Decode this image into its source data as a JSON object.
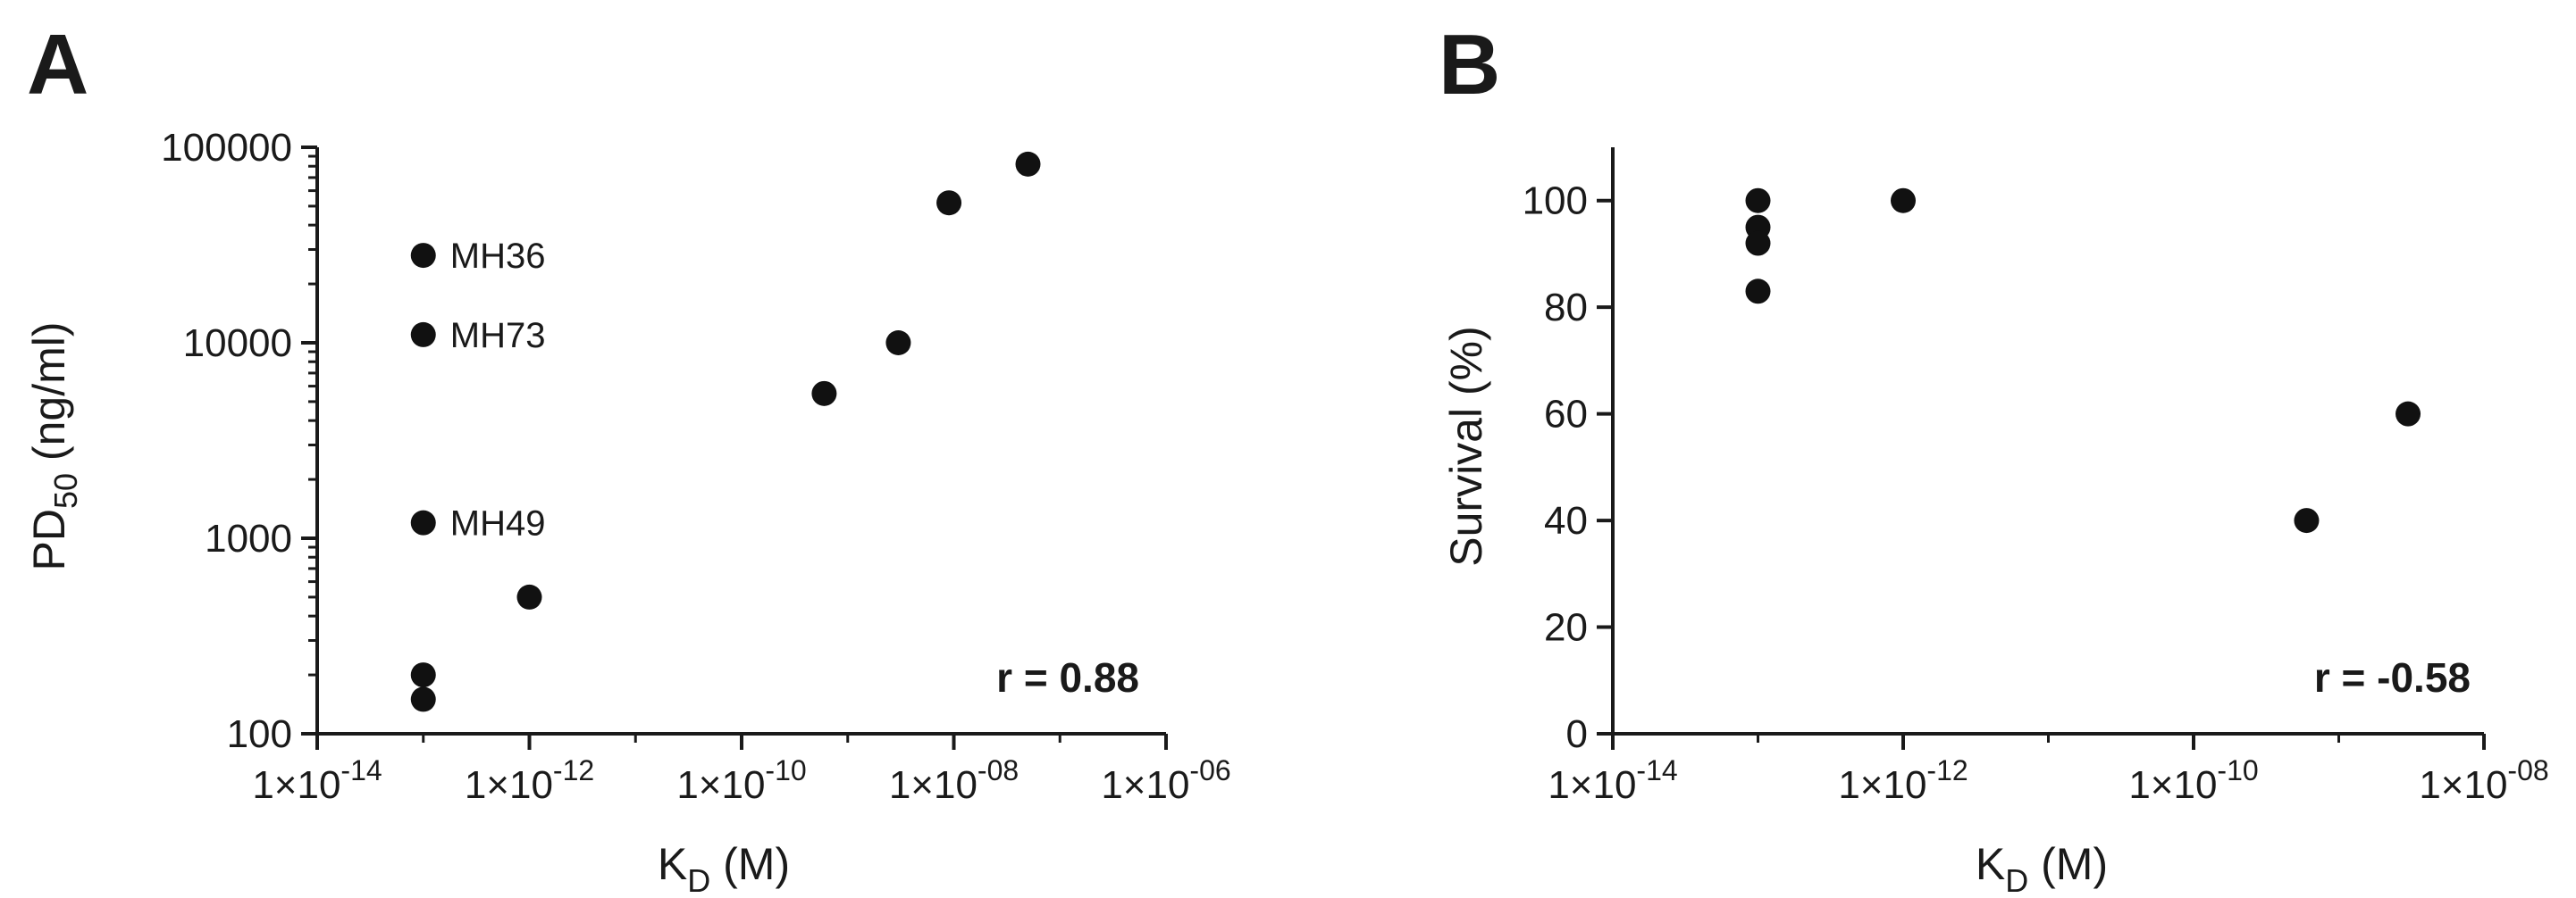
{
  "chart_data": [
    {
      "panel": "A",
      "type": "scatter",
      "title": "",
      "xlabel": "K",
      "xlabel_sub": "D",
      "xlabel_unit": " (M)",
      "ylabel": "PD",
      "ylabel_sub": "50",
      "ylabel_unit": " (ng/ml)",
      "xscale": "log",
      "yscale": "log",
      "xlim": [
        1e-14,
        1e-06
      ],
      "ylim": [
        100,
        100000
      ],
      "xticks": [
        {
          "value": 1e-14,
          "base": "1×10",
          "exp": "-14"
        },
        {
          "value": 1e-12,
          "base": "1×10",
          "exp": "-12"
        },
        {
          "value": 1e-10,
          "base": "1×10",
          "exp": "-10"
        },
        {
          "value": 1e-08,
          "base": "1×10",
          "exp": "-08"
        },
        {
          "value": 1e-06,
          "base": "1×10",
          "exp": "-06"
        }
      ],
      "yticks": [
        {
          "value": 100,
          "label": "100"
        },
        {
          "value": 1000,
          "label": "1000"
        },
        {
          "value": 10000,
          "label": "10000"
        },
        {
          "value": 100000,
          "label": "100000"
        }
      ],
      "grid": false,
      "points": [
        {
          "x": 1e-13,
          "y": 28000,
          "label": "MH36"
        },
        {
          "x": 1e-13,
          "y": 11000,
          "label": "MH73"
        },
        {
          "x": 1e-13,
          "y": 1200,
          "label": "MH49"
        },
        {
          "x": 1e-13,
          "y": 200
        },
        {
          "x": 1e-13,
          "y": 150
        },
        {
          "x": 1e-12,
          "y": 500
        },
        {
          "x": 6e-10,
          "y": 5500
        },
        {
          "x": 3e-09,
          "y": 10000
        },
        {
          "x": 9e-09,
          "y": 52000
        },
        {
          "x": 5e-08,
          "y": 82000
        }
      ],
      "annotation": "r = 0.88"
    },
    {
      "panel": "B",
      "type": "scatter",
      "title": "",
      "xlabel": "K",
      "xlabel_sub": "D",
      "xlabel_unit": " (M)",
      "ylabel": "Survival (%)",
      "xscale": "log",
      "yscale": "linear",
      "xlim": [
        1e-14,
        1e-08
      ],
      "ylim": [
        0,
        110
      ],
      "xticks": [
        {
          "value": 1e-14,
          "base": "1×10",
          "exp": "-14"
        },
        {
          "value": 1e-12,
          "base": "1×10",
          "exp": "-12"
        },
        {
          "value": 1e-10,
          "base": "1×10",
          "exp": "-10"
        },
        {
          "value": 1e-08,
          "base": "1×10",
          "exp": "-08"
        }
      ],
      "yticks": [
        {
          "value": 0,
          "label": "0"
        },
        {
          "value": 20,
          "label": "20"
        },
        {
          "value": 40,
          "label": "40"
        },
        {
          "value": 60,
          "label": "60"
        },
        {
          "value": 80,
          "label": "80"
        },
        {
          "value": 100,
          "label": "100"
        }
      ],
      "grid": false,
      "points": [
        {
          "x": 1e-13,
          "y": 100
        },
        {
          "x": 1e-13,
          "y": 95
        },
        {
          "x": 1e-13,
          "y": 92
        },
        {
          "x": 1e-13,
          "y": 83
        },
        {
          "x": 1e-12,
          "y": 100
        },
        {
          "x": 6e-10,
          "y": 40
        },
        {
          "x": 3e-09,
          "y": 60
        }
      ],
      "annotation": "r = -0.58"
    }
  ]
}
